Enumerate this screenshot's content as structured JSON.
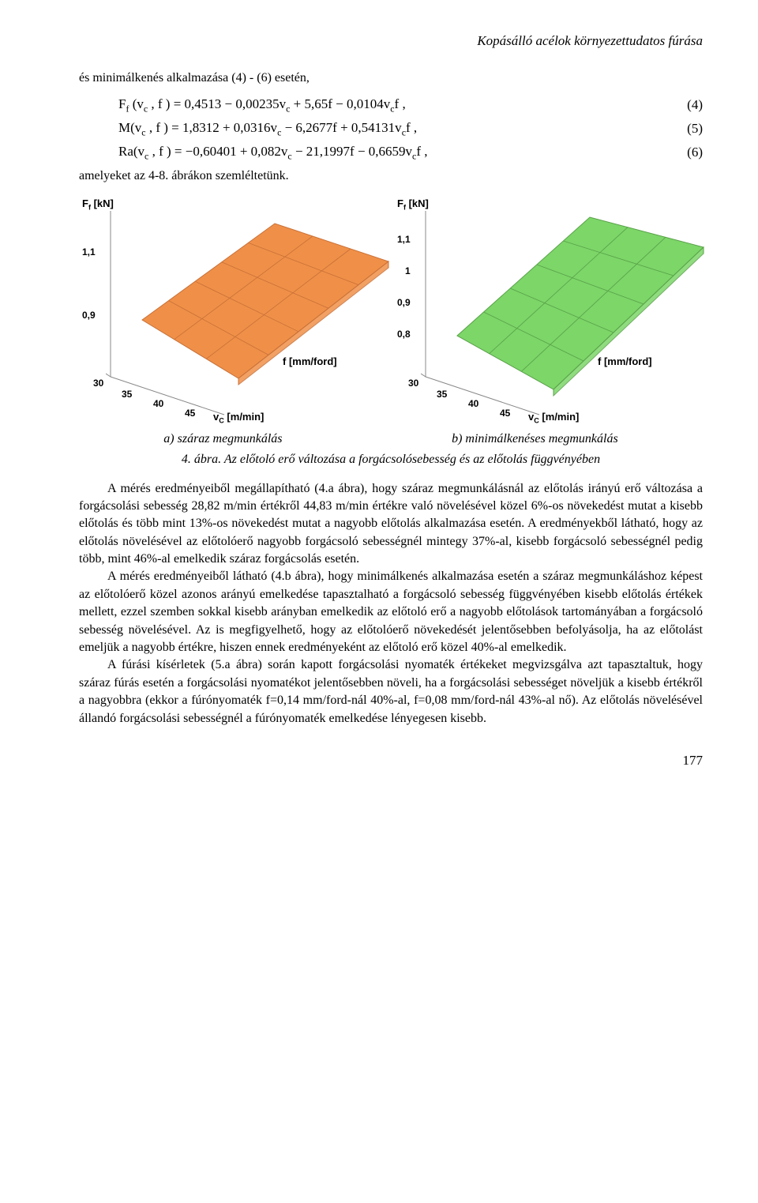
{
  "header": "Kopásálló acélok környezettudatos fúrása",
  "intro": "és minimálkenés alkalmazása (4) - (6) esetén,",
  "equations": {
    "eq4": {
      "text": "F_f(v_c , f) = 0,4513 − 0,00235v_c + 5,65f − 0,0104v_c f ,",
      "num": "(4)"
    },
    "eq5": {
      "text": "M(v_c , f) = 1,8312 + 0,0316v_c − 6,2677f + 0,54131v_c f ,",
      "num": "(5)"
    },
    "eq6": {
      "text": "Ra(v_c , f) = −0,60401 + 0,082v_c − 21,1997f − 0,6659v_c f ,",
      "num": "(6)"
    }
  },
  "post_eq": "amelyeket az 4-8. ábrákon szemléltetünk.",
  "charts": {
    "panel_a": {
      "type": "3d-surface",
      "z_label": "F_f [kN]",
      "x_label": "v_C [m/min]",
      "y_label": "f [mm/ford]",
      "z_ticks": [
        "0,9",
        "1,1"
      ],
      "x_ticks": [
        "30",
        "35",
        "40",
        "45"
      ],
      "surface_fill": "#f09048",
      "surface_stroke": "#c87038",
      "grid_color": "#888",
      "background": "#ffffff",
      "label_fontsize": 13,
      "tick_fontsize": 12,
      "surface_poly": [
        [
          46,
          138
        ],
        [
          214,
          16
        ],
        [
          358,
          64
        ],
        [
          168,
          212
        ]
      ],
      "mesh_rows": 3,
      "mesh_cols": 5
    },
    "panel_b": {
      "type": "3d-surface",
      "z_label": "F_f [kN]",
      "x_label": "v_C [m/min]",
      "y_label": "f [mm/ford]",
      "z_ticks": [
        "0,8",
        "0,9",
        "1",
        "1,1"
      ],
      "x_ticks": [
        "30",
        "35",
        "40",
        "45"
      ],
      "surface_fill": "#7cd668",
      "surface_stroke": "#58a048",
      "grid_color": "#888",
      "background": "#ffffff",
      "label_fontsize": 13,
      "tick_fontsize": 12,
      "surface_poly": [
        [
          46,
          158
        ],
        [
          214,
          8
        ],
        [
          358,
          46
        ],
        [
          168,
          226
        ]
      ],
      "mesh_rows": 3,
      "mesh_cols": 5
    }
  },
  "captions": {
    "a": "a) száraz megmunkálás",
    "b": "b) minimálkenéses megmunkálás",
    "fig": "4. ábra. Az előtoló erő változása a forgácsolósebesség és az előtolás függvényében"
  },
  "paragraphs": {
    "p1": "A mérés eredményeiből megállapítható (4.a ábra), hogy száraz megmunkálásnál az előtolás irányú erő változása a forgácsolási sebesség 28,82 m/min értékről 44,83 m/min értékre való növelésével közel 6%-os növekedést mutat a kisebb előtolás és több mint 13%-os növekedést mutat a nagyobb előtolás alkalmazása esetén. A eredményekből látható, hogy az előtolás növelésével az előtolóerő nagyobb forgácsoló sebességnél mintegy 37%-al, kisebb forgácsoló sebességnél pedig több, mint 46%-al emelkedik száraz forgácsolás esetén.",
    "p2": "A mérés eredményeiből látható (4.b ábra), hogy minimálkenés alkalmazása esetén a száraz megmunkáláshoz képest az előtolóerő közel azonos arányú emelkedése tapasztalható a forgácsoló sebesség függvényében kisebb előtolás értékek mellett, ezzel szemben sokkal kisebb arányban emelkedik az előtoló erő a  nagyobb előtolások tartományában a forgácsoló sebesség növelésével. Az is megfigyelhető, hogy az előtolóerő növekedését jelentősebben befolyásolja, ha az előtolást emeljük a nagyobb értékre, hiszen ennek eredményeként az előtoló erő közel 40%-al emelkedik.",
    "p3": "A fúrási kísérletek (5.a ábra) során kapott forgácsolási nyomaték értékeket megvizsgálva azt tapasztaltuk, hogy száraz fúrás esetén a forgácsolási nyomatékot jelentősebben növeli, ha a forgácsolási sebességet növeljük a kisebb értékről a nagyobbra (ekkor a fúrónyomaték f=0,14 mm/ford-nál 40%-al, f=0,08 mm/ford-nál 43%-al nő). Az előtolás növelésével állandó forgácsolási sebességnél a fúrónyomaték emelkedése lényegesen kisebb."
  },
  "page_number": "177"
}
